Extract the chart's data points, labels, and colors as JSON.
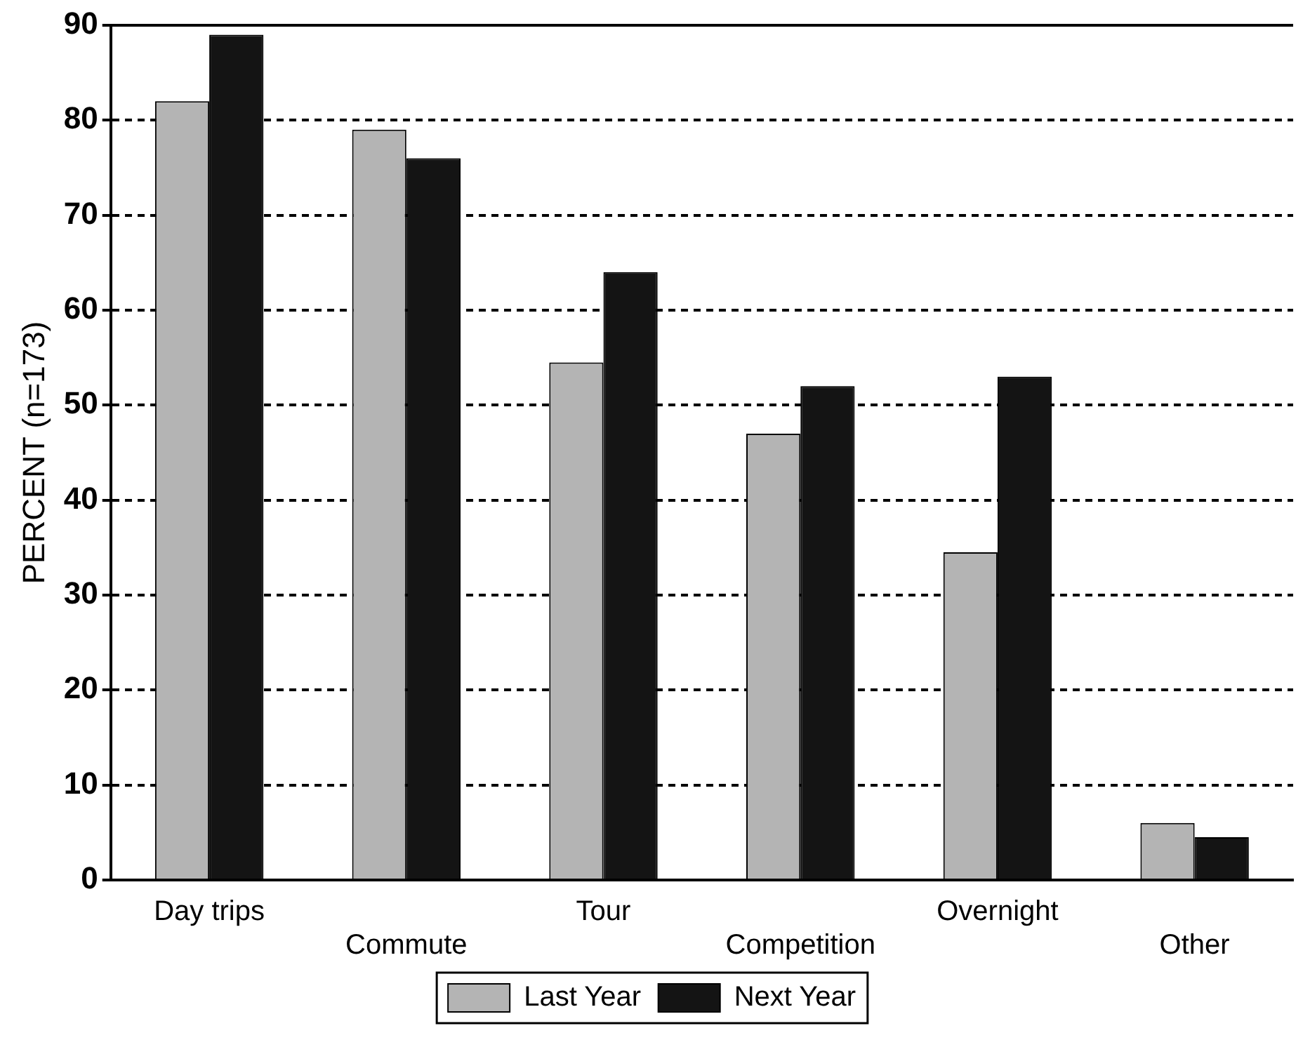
{
  "chart_data": {
    "type": "bar",
    "ylabel": "PERCENT (n=173)",
    "categories": [
      "Day trips",
      "Commute",
      "Tour",
      "Competition",
      "Overnight",
      "Other"
    ],
    "series": [
      {
        "name": "Last Year",
        "color": "#b4b4b4",
        "values": [
          82,
          79,
          54.5,
          47,
          34.5,
          6
        ]
      },
      {
        "name": "Next Year",
        "color": "#141414",
        "values": [
          89,
          76,
          64,
          52,
          53,
          4.5
        ]
      }
    ],
    "ylim": [
      0,
      90
    ],
    "yticks": [
      0,
      10,
      20,
      30,
      40,
      50,
      60,
      70,
      80,
      90
    ],
    "grid": "y",
    "legend": "bottom"
  }
}
